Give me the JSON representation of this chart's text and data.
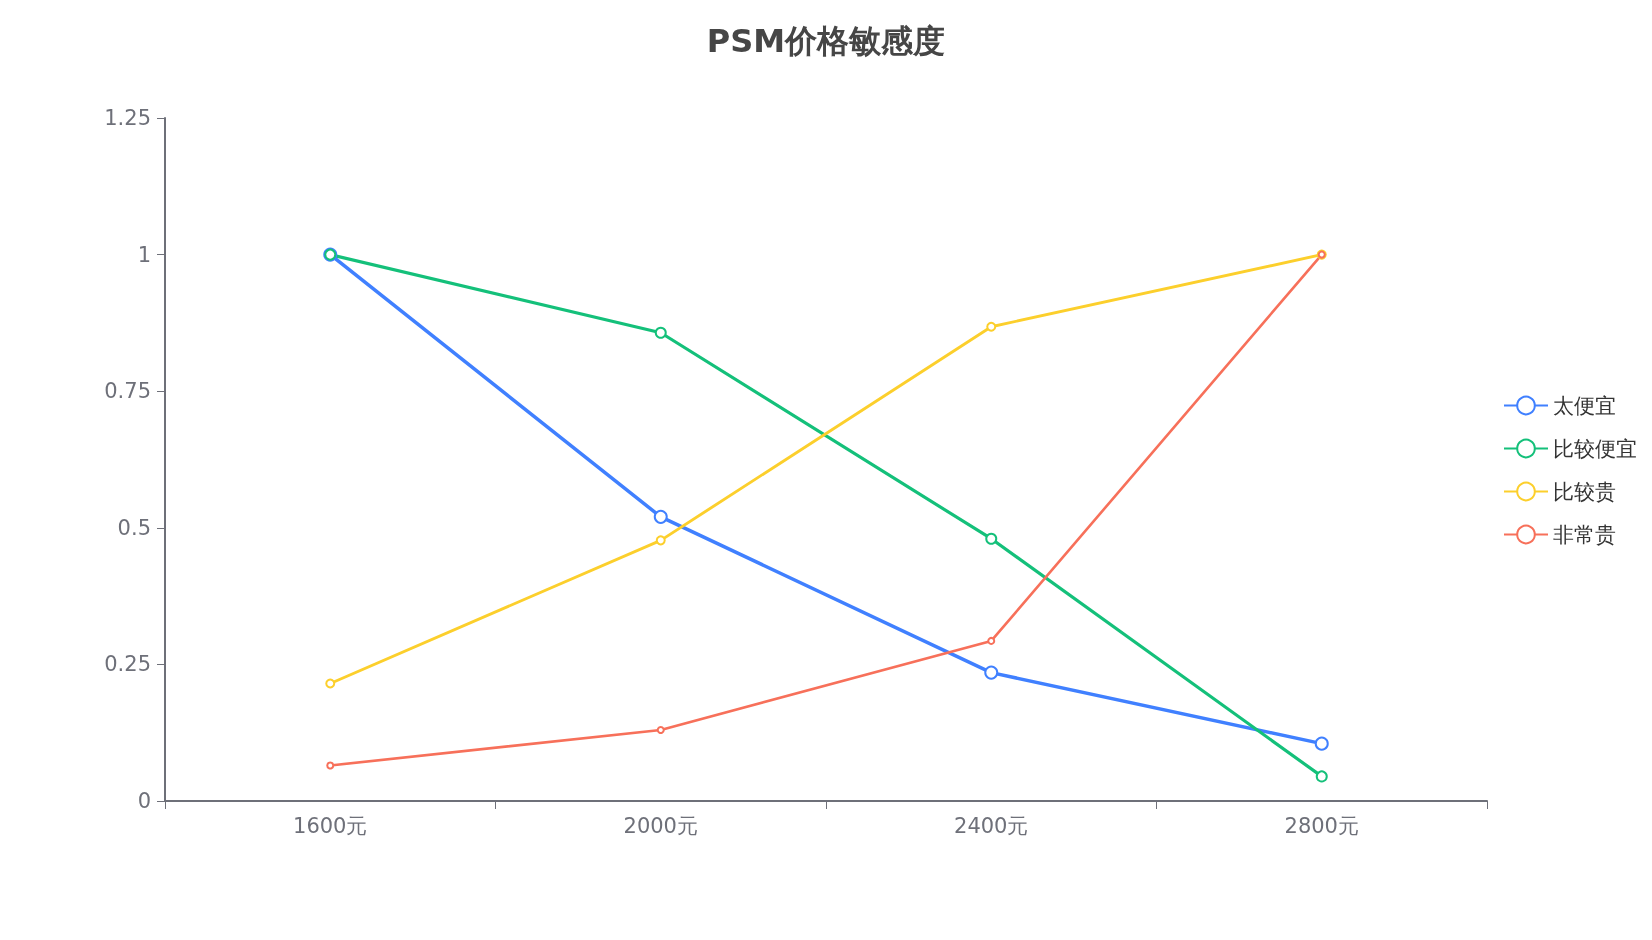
{
  "chart_data": {
    "type": "line",
    "title": "PSM价格敏感度",
    "categories": [
      "1600元",
      "2000元",
      "2400元",
      "2800元"
    ],
    "series": [
      {
        "name": "太便宜",
        "color": "#4080ff",
        "values": [
          1,
          0.52,
          0.235,
          0.105
        ]
      },
      {
        "name": "比较便宜",
        "color": "#14c07a",
        "values": [
          1,
          0.857,
          0.48,
          0.045
        ]
      },
      {
        "name": "比较贵",
        "color": "#fccf2c",
        "values": [
          0.215,
          0.477,
          0.868,
          1
        ]
      },
      {
        "name": "非常贵",
        "color": "#f7705a",
        "values": [
          0.065,
          0.13,
          0.293,
          1
        ]
      }
    ],
    "ylim": [
      0,
      1.25
    ],
    "yticks": [
      0,
      0.25,
      0.5,
      0.75,
      1,
      1.25
    ],
    "grid": false,
    "legend": "right",
    "marker": "circle",
    "line_style": "solid"
  }
}
